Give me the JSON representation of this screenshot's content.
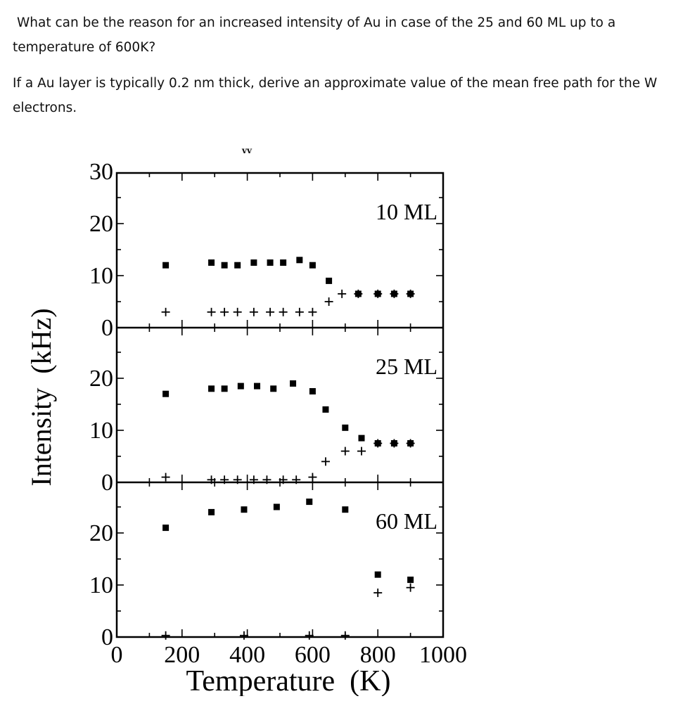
{
  "questions": [
    "What can be the reason for an increased intensity of Au in case of the 25 and 60 ML up to a temperature of 600K?",
    "If a Au layer is typically 0.2 nm thick, derive an approximate value of the mean free path for the W electrons."
  ],
  "figure": {
    "top_mark": "ᴠᴠ",
    "xlabel": "Temperature  (K)",
    "ylabel": "Intensity  (kHz)"
  },
  "chart_data": [
    {
      "type": "scatter",
      "label": "10 ML",
      "xlim": [
        0,
        1000
      ],
      "ylim": [
        0,
        30
      ],
      "ytick_labels": [
        "0",
        "10",
        "20",
        "30"
      ],
      "xtick_labels": [],
      "series": [
        {
          "marker": "square",
          "x": [
            150,
            290,
            330,
            370,
            420,
            470,
            510,
            560,
            600,
            650,
            740,
            800,
            850,
            900
          ],
          "y": [
            12,
            12.5,
            12,
            12,
            12.5,
            12.5,
            12.5,
            13,
            12,
            9,
            6.5,
            6.5,
            6.5,
            6.5
          ]
        },
        {
          "marker": "plus",
          "x": [
            150,
            290,
            330,
            370,
            420,
            470,
            510,
            560,
            600,
            650,
            690,
            740,
            800,
            850,
            900
          ],
          "y": [
            3,
            3,
            3,
            3,
            3,
            3,
            3,
            3,
            3,
            5,
            6.5,
            6.5,
            6.5,
            6.5,
            6.5
          ]
        }
      ]
    },
    {
      "type": "scatter",
      "label": "25 ML",
      "xlim": [
        0,
        1000
      ],
      "ylim": [
        0,
        30
      ],
      "ytick_labels": [
        "0",
        "10",
        "20"
      ],
      "xtick_labels": [],
      "series": [
        {
          "marker": "square",
          "x": [
            150,
            290,
            330,
            380,
            430,
            480,
            540,
            600,
            640,
            700,
            750,
            800,
            850,
            900
          ],
          "y": [
            17,
            18,
            18,
            18.5,
            18.5,
            18,
            19,
            17.5,
            14,
            10.5,
            8.5,
            7.5,
            7.5,
            7.5
          ]
        },
        {
          "marker": "plus",
          "x": [
            150,
            290,
            330,
            370,
            420,
            460,
            510,
            550,
            600,
            640,
            700,
            750,
            800,
            850,
            900
          ],
          "y": [
            1,
            0.5,
            0.5,
            0.5,
            0.5,
            0.5,
            0.5,
            0.5,
            1,
            4,
            6,
            6,
            7.5,
            7.5,
            7.5
          ]
        }
      ]
    },
    {
      "type": "scatter",
      "label": "60 ML",
      "xlim": [
        0,
        1000
      ],
      "ylim": [
        0,
        30
      ],
      "ytick_labels": [
        "0",
        "10",
        "20"
      ],
      "xtick_labels": [
        "0",
        "200",
        "400",
        "600",
        "800",
        "1000"
      ],
      "series": [
        {
          "marker": "square",
          "x": [
            150,
            290,
            390,
            490,
            590,
            700,
            800,
            900
          ],
          "y": [
            21,
            24,
            24.5,
            25,
            26,
            24.5,
            12,
            11
          ]
        },
        {
          "marker": "plus",
          "x": [
            150,
            390,
            590,
            700,
            800,
            900
          ],
          "y": [
            0.3,
            0.3,
            0.3,
            0.3,
            8.5,
            9.5
          ]
        }
      ]
    }
  ]
}
